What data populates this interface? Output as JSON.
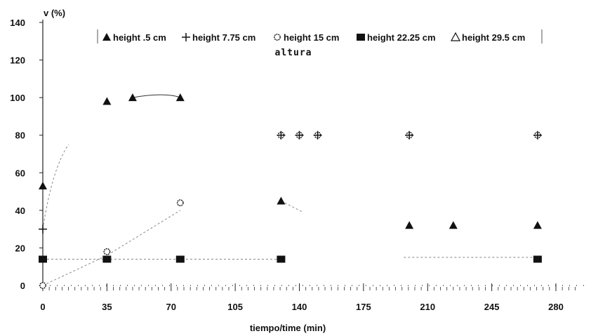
{
  "chart_data": {
    "type": "scatter",
    "ylabel": "v (%)",
    "xlabel": "tiempo/time (min)",
    "annotation": "altura",
    "xlim": [
      0,
      280
    ],
    "ylim": [
      0,
      140
    ],
    "x_ticks": [
      0,
      35,
      70,
      105,
      140,
      175,
      210,
      245,
      280
    ],
    "y_ticks": [
      0,
      20,
      40,
      60,
      80,
      100,
      120,
      140
    ],
    "grid": false,
    "legend_position": "top",
    "series": [
      {
        "name": "height .5 cm",
        "marker": "triangle",
        "points": [
          [
            0,
            53
          ],
          [
            35,
            98
          ],
          [
            49,
            100
          ],
          [
            75,
            100
          ],
          [
            130,
            45
          ],
          [
            200,
            32
          ],
          [
            224,
            32
          ],
          [
            270,
            32
          ]
        ]
      },
      {
        "name": "height 7.75 cm",
        "marker": "plus",
        "points": [
          [
            0,
            30
          ],
          [
            130,
            80
          ],
          [
            140,
            80
          ],
          [
            150,
            80
          ],
          [
            200,
            80
          ],
          [
            270,
            80
          ]
        ]
      },
      {
        "name": "height 15 cm",
        "marker": "open-circle",
        "points": [
          [
            0,
            0
          ],
          [
            35,
            18
          ],
          [
            75,
            44
          ],
          [
            130,
            80
          ],
          [
            140,
            80
          ],
          [
            150,
            80
          ],
          [
            200,
            80
          ],
          [
            270,
            80
          ]
        ]
      },
      {
        "name": "height 22.25 cm",
        "marker": "filled-square",
        "points": [
          [
            0,
            14
          ],
          [
            35,
            14
          ],
          [
            75,
            14
          ],
          [
            130,
            14
          ],
          [
            270,
            14
          ]
        ]
      },
      {
        "name": "height 29.5 cm",
        "marker": "open-triangle",
        "points": []
      }
    ]
  }
}
